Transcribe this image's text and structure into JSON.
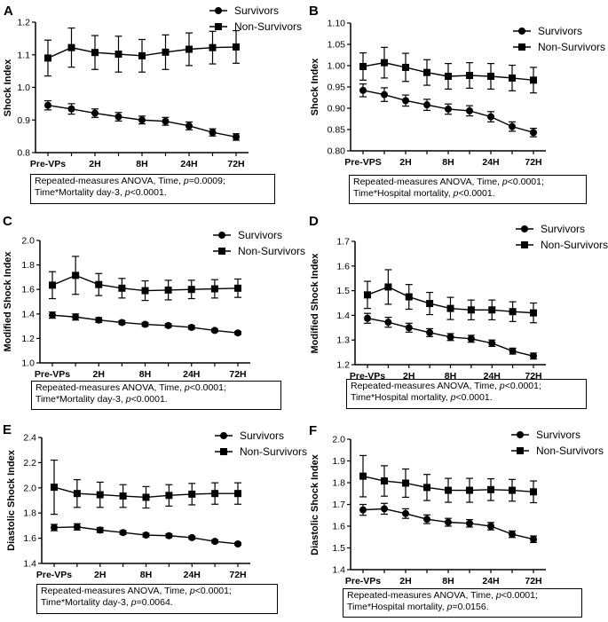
{
  "chart_data": [
    {
      "id": "A",
      "type": "line",
      "ylabel": "Shock Index",
      "ylim": [
        0.8,
        1.2
      ],
      "yticks": [
        "0.8",
        "0.9",
        "1.0",
        "1.1",
        "1.2"
      ],
      "xticks": [
        "Pre-VPs",
        "2H",
        "8H",
        "24H",
        "72H"
      ],
      "legend": [
        "Survivors",
        "Non-Survivors"
      ],
      "series": [
        {
          "name": "Survivors",
          "marker": "circle",
          "values": [
            0.945,
            0.934,
            0.921,
            0.91,
            0.9,
            0.896,
            0.882,
            0.862,
            0.848
          ],
          "errors": [
            0.014,
            0.016,
            0.013,
            0.013,
            0.012,
            0.012,
            0.012,
            0.011,
            0.01
          ]
        },
        {
          "name": "Non-Survivors",
          "marker": "square",
          "values": [
            1.09,
            1.122,
            1.107,
            1.102,
            1.097,
            1.108,
            1.117,
            1.122,
            1.124
          ],
          "errors": [
            0.055,
            0.06,
            0.052,
            0.055,
            0.05,
            0.053,
            0.05,
            0.05,
            0.05
          ]
        }
      ],
      "stats": {
        "line1_pre": "Repeated-measures ANOVA, Time, ",
        "line1_p": "p",
        "line1_post": "=0.0009;",
        "line2_pre": "Time*Mortality day-3, ",
        "line2_p": "p",
        "line2_post": "<0.0001."
      }
    },
    {
      "id": "B",
      "type": "line",
      "ylabel": "Shock Index",
      "ylim": [
        0.8,
        1.1
      ],
      "yticks": [
        "0.80",
        "0.85",
        "0.90",
        "0.95",
        "1.00",
        "1.05",
        "1.10"
      ],
      "xticks": [
        "Pre-VPS",
        "2H",
        "8H",
        "24H",
        "72H"
      ],
      "legend": [
        "Survivors",
        "Non-Survivors"
      ],
      "series": [
        {
          "name": "Survivors",
          "marker": "circle",
          "values": [
            0.942,
            0.932,
            0.918,
            0.908,
            0.898,
            0.894,
            0.88,
            0.857,
            0.843
          ],
          "errors": [
            0.015,
            0.016,
            0.013,
            0.013,
            0.012,
            0.012,
            0.012,
            0.011,
            0.01
          ]
        },
        {
          "name": "Non-Survivors",
          "marker": "square",
          "values": [
            0.998,
            1.007,
            0.996,
            0.984,
            0.975,
            0.977,
            0.975,
            0.971,
            0.966
          ],
          "errors": [
            0.032,
            0.036,
            0.033,
            0.03,
            0.03,
            0.03,
            0.03,
            0.03,
            0.03
          ]
        }
      ],
      "stats": {
        "line1_pre": "Repeated-measures ANOVA, Time, ",
        "line1_p": "p",
        "line1_post": "<0.0001;",
        "line2_pre": "Time*Hospital mortality, ",
        "line2_p": "p",
        "line2_post": "<0.0001."
      }
    },
    {
      "id": "C",
      "type": "line",
      "ylabel": "Modified Shock Index",
      "ylim": [
        1.0,
        2.0
      ],
      "yticks": [
        "1.0",
        "1.2",
        "1.4",
        "1.6",
        "1.8",
        "2.0"
      ],
      "xticks": [
        "Pre-VPs",
        "2H",
        "8H",
        "24H",
        "72H"
      ],
      "legend": [
        "Survivors",
        "Non-Survivors"
      ],
      "series": [
        {
          "name": "Survivors",
          "marker": "circle",
          "values": [
            1.39,
            1.375,
            1.35,
            1.33,
            1.315,
            1.305,
            1.29,
            1.265,
            1.245
          ],
          "errors": [
            0.025,
            0.025,
            0.02,
            0.015,
            0.015,
            0.015,
            0.015,
            0.012,
            0.012
          ]
        },
        {
          "name": "Non-Survivors",
          "marker": "square",
          "values": [
            1.635,
            1.715,
            1.64,
            1.61,
            1.59,
            1.595,
            1.6,
            1.605,
            1.61
          ],
          "errors": [
            0.11,
            0.155,
            0.09,
            0.08,
            0.08,
            0.08,
            0.075,
            0.075,
            0.075
          ]
        }
      ],
      "stats": {
        "line1_pre": "Repeated-measures ANOVA, Time, ",
        "line1_p": "p",
        "line1_post": "<0.0001;",
        "line2_pre": "Time*Mortality day-3, ",
        "line2_p": "p",
        "line2_post": "<0.0001."
      }
    },
    {
      "id": "D",
      "type": "line",
      "ylabel": "Modified Shock Index",
      "ylim": [
        1.2,
        1.7
      ],
      "yticks": [
        "1.2",
        "1.3",
        "1.4",
        "1.5",
        "1.6",
        "1.7"
      ],
      "xticks": [
        "Pre-VPs",
        "2H",
        "8H",
        "24H",
        "72H"
      ],
      "legend": [
        "Survivors",
        "Non-Survivors"
      ],
      "series": [
        {
          "name": "Survivors",
          "marker": "circle",
          "values": [
            1.388,
            1.372,
            1.35,
            1.33,
            1.312,
            1.305,
            1.287,
            1.255,
            1.235
          ],
          "errors": [
            0.02,
            0.02,
            0.018,
            0.016,
            0.014,
            0.014,
            0.013,
            0.012,
            0.012
          ]
        },
        {
          "name": "Non-Survivors",
          "marker": "square",
          "values": [
            1.483,
            1.515,
            1.475,
            1.448,
            1.428,
            1.422,
            1.422,
            1.415,
            1.41
          ],
          "errors": [
            0.055,
            0.07,
            0.05,
            0.045,
            0.045,
            0.04,
            0.04,
            0.04,
            0.04
          ]
        }
      ],
      "stats": {
        "line1_pre": "Repeated-measures ANOVA, Time, ",
        "line1_p": "p",
        "line1_post": "<0.0001;",
        "line2_pre": "Time*Hospital mortality, ",
        "line2_p": "p",
        "line2_post": "<0.0001."
      }
    },
    {
      "id": "E",
      "type": "line",
      "ylabel": "Diastolic Shock Index",
      "ylim": [
        1.4,
        2.4
      ],
      "yticks": [
        "1.4",
        "1.6",
        "1.8",
        "2.0",
        "2.2",
        "2.4"
      ],
      "xticks": [
        "Pre-VPs",
        "2H",
        "8H",
        "24H",
        "72H"
      ],
      "legend": [
        "Survivors",
        "Non-Survivors"
      ],
      "series": [
        {
          "name": "Survivors",
          "marker": "circle",
          "values": [
            1.685,
            1.69,
            1.665,
            1.645,
            1.625,
            1.62,
            1.605,
            1.575,
            1.555
          ],
          "errors": [
            0.025,
            0.025,
            0.02,
            0.015,
            0.015,
            0.015,
            0.012,
            0.012,
            0.01
          ]
        },
        {
          "name": "Non-Survivors",
          "marker": "square",
          "values": [
            2.005,
            1.955,
            1.945,
            1.935,
            1.925,
            1.94,
            1.95,
            1.955,
            1.955
          ],
          "errors": [
            0.215,
            0.11,
            0.1,
            0.09,
            0.085,
            0.085,
            0.085,
            0.085,
            0.085
          ]
        }
      ],
      "stats": {
        "line1_pre": "Repeated-measures ANOVA, Time, ",
        "line1_p": "p",
        "line1_post": "<0.0001;",
        "line2_pre": "Time*Mortality day-3, ",
        "line2_p": "p",
        "line2_post": "=0.0064."
      }
    },
    {
      "id": "F",
      "type": "line",
      "ylabel": "Diastolic Shock Index",
      "ylim": [
        1.4,
        2.0
      ],
      "yticks": [
        "1.4",
        "1.5",
        "1.6",
        "1.7",
        "1.8",
        "1.9",
        "2.0"
      ],
      "xticks": [
        "Pre-VPs",
        "2H",
        "8H",
        "24H",
        "72H"
      ],
      "legend": [
        "Survivors",
        "Non-Survivors"
      ],
      "series": [
        {
          "name": "Survivors",
          "marker": "circle",
          "values": [
            1.675,
            1.68,
            1.658,
            1.632,
            1.618,
            1.613,
            1.6,
            1.563,
            1.54
          ],
          "errors": [
            0.025,
            0.025,
            0.022,
            0.02,
            0.018,
            0.017,
            0.017,
            0.015,
            0.015
          ]
        },
        {
          "name": "Non-Survivors",
          "marker": "square",
          "values": [
            1.83,
            1.808,
            1.798,
            1.778,
            1.765,
            1.765,
            1.768,
            1.765,
            1.758
          ],
          "errors": [
            0.095,
            0.07,
            0.065,
            0.06,
            0.055,
            0.055,
            0.05,
            0.05,
            0.05
          ]
        }
      ],
      "stats": {
        "line1_pre": "Repeated-measures ANOVA, Time, ",
        "line1_p": "p",
        "line1_post": "<0.0001;",
        "line2_pre": "Time*Hospital mortality, ",
        "line2_p": "p",
        "line2_post": "=0.0156."
      }
    }
  ]
}
